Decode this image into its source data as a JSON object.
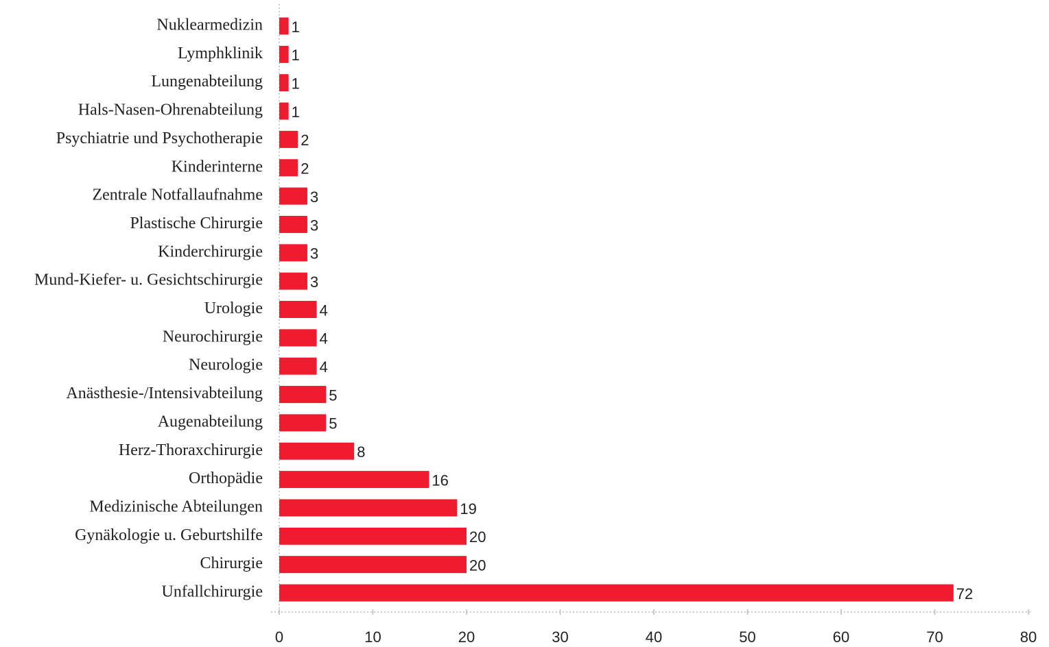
{
  "chart_data": {
    "type": "bar",
    "orientation": "horizontal",
    "categories": [
      "Nuklearmedizin",
      "Lymphklinik",
      "Lungenabteilung",
      "Hals-Nasen-Ohrenabteilung",
      "Psychiatrie und Psychotherapie",
      "Kinderinterne",
      "Zentrale Notfallaufnahme",
      "Plastische Chirurgie",
      "Kinderchirurgie",
      "Mund-Kiefer- u. Gesichtschirurgie",
      "Urologie",
      "Neurochirurgie",
      "Neurologie",
      "Anästhesie-/Intensivabteilung",
      "Augenabteilung",
      "Herz-Thoraxchirurgie",
      "Orthopädie",
      "Medizinische Abteilungen",
      "Gynäkologie u. Geburtshilfe",
      "Chirurgie",
      "Unfallchirurgie"
    ],
    "values": [
      1,
      1,
      1,
      1,
      2,
      2,
      3,
      3,
      3,
      3,
      4,
      4,
      4,
      5,
      5,
      8,
      16,
      19,
      20,
      20,
      72
    ],
    "color": "#ee1c2e",
    "xlim": [
      0,
      80
    ],
    "xticks": [
      0,
      10,
      20,
      30,
      40,
      50,
      60,
      70,
      80
    ]
  }
}
